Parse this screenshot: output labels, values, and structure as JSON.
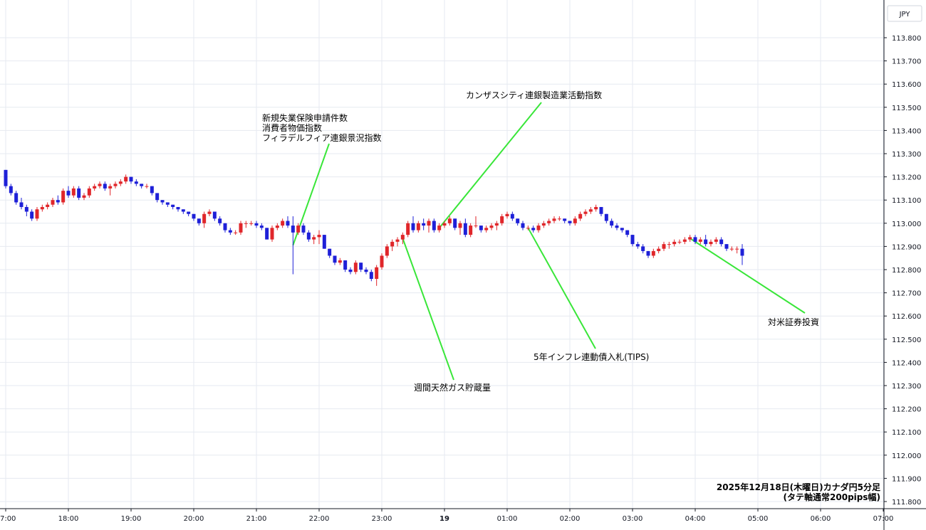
{
  "chart_data": {
    "type": "candlestick",
    "currency_label": "JPY",
    "caption_lines": [
      "2025年12月18日(木曜日)カナダ円5分足",
      "(タテ軸通常200pips幅)"
    ],
    "ylim": [
      111.78,
      113.88
    ],
    "y_ticks": [
      "113.800",
      "113.700",
      "113.600",
      "113.500",
      "113.400",
      "113.300",
      "113.200",
      "113.100",
      "113.000",
      "112.900",
      "112.800",
      "112.700",
      "112.600",
      "112.500",
      "112.400",
      "112.300",
      "112.200",
      "112.100",
      "112.000",
      "111.900",
      "111.800"
    ],
    "x_ticks": [
      "17:00",
      "18:00",
      "19:00",
      "20:00",
      "21:00",
      "22:00",
      "23:00",
      "19",
      "01:00",
      "02:00",
      "03:00",
      "04:00",
      "05:00",
      "06:00",
      "07:00"
    ],
    "grid": true,
    "colors": {
      "up": "#e0262a",
      "down": "#1e20d8",
      "annotation_line": "#39e639",
      "grid": "#e6eaf0",
      "axis": "#131722"
    },
    "annotations": [
      {
        "lines": [
          "新規失業保険申請件数",
          "消費者物価指数",
          "フィラデルフィア連銀景況指数"
        ],
        "candle_index": 55
      },
      {
        "lines": [
          "カンザスシティ連銀製造業活動指数"
        ],
        "candle_index": 83
      },
      {
        "lines": [
          "週間天然ガス貯蔵量"
        ],
        "candle_index": 76
      },
      {
        "lines": [
          "5年インフレ連動債入札(TIPS)"
        ],
        "candle_index": 100
      },
      {
        "lines": [
          "対米証券投資"
        ],
        "candle_index": 131
      }
    ],
    "candles": [
      [
        113.23,
        113.23,
        113.15,
        113.16
      ],
      [
        113.16,
        113.17,
        113.12,
        113.13
      ],
      [
        113.13,
        113.14,
        113.08,
        113.09
      ],
      [
        113.09,
        113.11,
        113.06,
        113.07
      ],
      [
        113.07,
        113.08,
        113.03,
        113.05
      ],
      [
        113.05,
        113.06,
        113.01,
        113.02
      ],
      [
        113.02,
        113.07,
        113.01,
        113.06
      ],
      [
        113.06,
        113.08,
        113.05,
        113.07
      ],
      [
        113.07,
        113.09,
        113.06,
        113.08
      ],
      [
        113.08,
        113.11,
        113.07,
        113.1
      ],
      [
        113.1,
        113.12,
        113.08,
        113.09
      ],
      [
        113.09,
        113.15,
        113.08,
        113.14
      ],
      [
        113.14,
        113.16,
        113.11,
        113.12
      ],
      [
        113.12,
        113.16,
        113.11,
        113.15
      ],
      [
        113.15,
        113.16,
        113.1,
        113.11
      ],
      [
        113.11,
        113.13,
        113.1,
        113.12
      ],
      [
        113.12,
        113.16,
        113.11,
        113.15
      ],
      [
        113.15,
        113.17,
        113.14,
        113.16
      ],
      [
        113.16,
        113.18,
        113.15,
        113.17
      ],
      [
        113.17,
        113.18,
        113.14,
        113.15
      ],
      [
        113.15,
        113.17,
        113.12,
        113.16
      ],
      [
        113.16,
        113.18,
        113.15,
        113.17
      ],
      [
        113.17,
        113.19,
        113.16,
        113.18
      ],
      [
        113.18,
        113.21,
        113.17,
        113.2
      ],
      [
        113.2,
        113.2,
        113.17,
        113.18
      ],
      [
        113.18,
        113.19,
        113.16,
        113.17
      ],
      [
        113.17,
        113.17,
        113.15,
        113.16
      ],
      [
        113.16,
        113.17,
        113.15,
        113.16
      ],
      [
        113.16,
        113.16,
        113.12,
        113.13
      ],
      [
        113.13,
        113.13,
        113.09,
        113.1
      ],
      [
        113.1,
        113.1,
        113.08,
        113.09
      ],
      [
        113.09,
        113.09,
        113.07,
        113.08
      ],
      [
        113.08,
        113.08,
        113.06,
        113.07
      ],
      [
        113.07,
        113.07,
        113.05,
        113.06
      ],
      [
        113.06,
        113.06,
        113.04,
        113.05
      ],
      [
        113.05,
        113.05,
        113.03,
        113.04
      ],
      [
        113.04,
        113.04,
        113.01,
        113.02
      ],
      [
        113.02,
        113.02,
        112.99,
        113.0
      ],
      [
        113.0,
        113.05,
        112.98,
        113.04
      ],
      [
        113.04,
        113.06,
        113.03,
        113.05
      ],
      [
        113.05,
        113.05,
        113.01,
        113.02
      ],
      [
        113.02,
        113.03,
        112.99,
        113.0
      ],
      [
        113.0,
        113.0,
        112.96,
        112.97
      ],
      [
        112.97,
        112.98,
        112.95,
        112.96
      ],
      [
        112.96,
        112.97,
        112.95,
        112.96
      ],
      [
        112.96,
        113.01,
        112.95,
        113.0
      ],
      [
        113.0,
        113.01,
        112.98,
        113.0
      ],
      [
        113.0,
        113.01,
        112.99,
        113.0
      ],
      [
        113.0,
        113.01,
        112.98,
        112.99
      ],
      [
        112.99,
        113.0,
        112.97,
        112.98
      ],
      [
        112.98,
        112.98,
        112.93,
        112.93
      ],
      [
        112.93,
        112.99,
        112.92,
        112.98
      ],
      [
        112.98,
        113.0,
        112.97,
        112.99
      ],
      [
        112.99,
        113.02,
        112.98,
        113.01
      ],
      [
        113.01,
        113.03,
        112.98,
        112.99
      ],
      [
        112.99,
        113.03,
        112.78,
        112.96
      ],
      [
        112.96,
        113.0,
        112.95,
        112.99
      ],
      [
        112.99,
        113.0,
        112.95,
        112.96
      ],
      [
        112.96,
        112.97,
        112.92,
        112.93
      ],
      [
        112.93,
        112.95,
        112.91,
        112.94
      ],
      [
        112.94,
        112.97,
        112.91,
        112.95
      ],
      [
        112.95,
        112.95,
        112.89,
        112.89
      ],
      [
        112.89,
        112.89,
        112.85,
        112.86
      ],
      [
        112.86,
        112.86,
        112.82,
        112.83
      ],
      [
        112.83,
        112.85,
        112.82,
        112.84
      ],
      [
        112.84,
        112.84,
        112.79,
        112.8
      ],
      [
        112.8,
        112.81,
        112.78,
        112.79
      ],
      [
        112.79,
        112.84,
        112.78,
        112.83
      ],
      [
        112.83,
        112.83,
        112.79,
        112.8
      ],
      [
        112.8,
        112.81,
        112.78,
        112.79
      ],
      [
        112.79,
        112.8,
        112.75,
        112.76
      ],
      [
        112.76,
        112.82,
        112.73,
        112.81
      ],
      [
        112.81,
        112.87,
        112.8,
        112.86
      ],
      [
        112.86,
        112.91,
        112.85,
        112.9
      ],
      [
        112.9,
        112.93,
        112.88,
        112.92
      ],
      [
        112.92,
        112.94,
        112.9,
        112.93
      ],
      [
        112.93,
        112.96,
        112.91,
        112.95
      ],
      [
        112.95,
        113.01,
        112.94,
        113.0
      ],
      [
        113.0,
        113.03,
        112.96,
        112.97
      ],
      [
        112.97,
        113.01,
        112.96,
        113.0
      ],
      [
        113.0,
        113.02,
        112.97,
        112.99
      ],
      [
        112.99,
        113.02,
        112.96,
        113.01
      ],
      [
        113.01,
        113.02,
        112.96,
        112.97
      ],
      [
        112.97,
        113.0,
        112.96,
        112.99
      ],
      [
        112.99,
        113.01,
        112.98,
        113.0
      ],
      [
        113.0,
        113.03,
        112.99,
        113.02
      ],
      [
        113.02,
        113.02,
        112.97,
        112.98
      ],
      [
        112.98,
        113.01,
        112.95,
        113.0
      ],
      [
        113.0,
        113.02,
        112.94,
        112.95
      ],
      [
        112.95,
        113.0,
        112.94,
        112.99
      ],
      [
        112.99,
        113.03,
        112.98,
        112.99
      ],
      [
        112.99,
        112.99,
        112.96,
        112.97
      ],
      [
        112.97,
        112.99,
        112.96,
        112.98
      ],
      [
        112.98,
        113.0,
        112.97,
        112.99
      ],
      [
        112.99,
        113.01,
        112.97,
        113.0
      ],
      [
        113.0,
        113.04,
        112.99,
        113.03
      ],
      [
        113.03,
        113.05,
        113.02,
        113.04
      ],
      [
        113.04,
        113.05,
        113.01,
        113.02
      ],
      [
        113.02,
        113.02,
        112.99,
        113.0
      ],
      [
        113.0,
        113.01,
        112.97,
        112.98
      ],
      [
        112.98,
        112.99,
        112.97,
        112.98
      ],
      [
        112.98,
        112.99,
        112.96,
        112.97
      ],
      [
        112.97,
        113.0,
        112.96,
        112.99
      ],
      [
        112.99,
        113.01,
        112.98,
        113.0
      ],
      [
        113.0,
        113.02,
        112.99,
        113.01
      ],
      [
        113.01,
        113.03,
        113.0,
        113.02
      ],
      [
        113.02,
        113.03,
        113.01,
        113.02
      ],
      [
        113.02,
        113.02,
        113.0,
        113.01
      ],
      [
        113.01,
        113.01,
        112.99,
        113.0
      ],
      [
        113.0,
        113.03,
        112.99,
        113.02
      ],
      [
        113.02,
        113.05,
        113.01,
        113.04
      ],
      [
        113.04,
        113.06,
        113.03,
        113.05
      ],
      [
        113.05,
        113.07,
        113.04,
        113.06
      ],
      [
        113.06,
        113.08,
        113.05,
        113.07
      ],
      [
        113.07,
        113.07,
        113.03,
        113.04
      ],
      [
        113.04,
        113.04,
        113.0,
        113.01
      ],
      [
        113.01,
        113.02,
        112.98,
        112.99
      ],
      [
        112.99,
        113.0,
        112.97,
        112.98
      ],
      [
        112.98,
        112.98,
        112.96,
        112.97
      ],
      [
        112.97,
        112.97,
        112.94,
        112.95
      ],
      [
        112.95,
        112.95,
        112.9,
        112.91
      ],
      [
        112.91,
        112.92,
        112.89,
        112.9
      ],
      [
        112.9,
        112.91,
        112.87,
        112.88
      ],
      [
        112.88,
        112.88,
        112.85,
        112.86
      ],
      [
        112.86,
        112.89,
        112.85,
        112.88
      ],
      [
        112.88,
        112.9,
        112.87,
        112.89
      ],
      [
        112.89,
        112.92,
        112.88,
        112.91
      ],
      [
        112.91,
        112.92,
        112.89,
        112.91
      ],
      [
        112.91,
        112.93,
        112.9,
        112.92
      ],
      [
        112.92,
        112.93,
        112.91,
        112.92
      ],
      [
        112.92,
        112.94,
        112.91,
        112.93
      ],
      [
        112.93,
        112.95,
        112.92,
        112.94
      ],
      [
        112.94,
        112.95,
        112.91,
        112.92
      ],
      [
        112.92,
        112.94,
        112.91,
        112.93
      ],
      [
        112.93,
        112.95,
        112.9,
        112.91
      ],
      [
        112.91,
        112.93,
        112.9,
        112.92
      ],
      [
        112.92,
        112.94,
        112.91,
        112.93
      ],
      [
        112.93,
        112.94,
        112.9,
        112.91
      ],
      [
        112.91,
        112.91,
        112.88,
        112.89
      ],
      [
        112.89,
        112.9,
        112.88,
        112.89
      ],
      [
        112.89,
        112.9,
        112.87,
        112.89
      ],
      [
        112.89,
        112.91,
        112.82,
        112.86
      ]
    ]
  }
}
